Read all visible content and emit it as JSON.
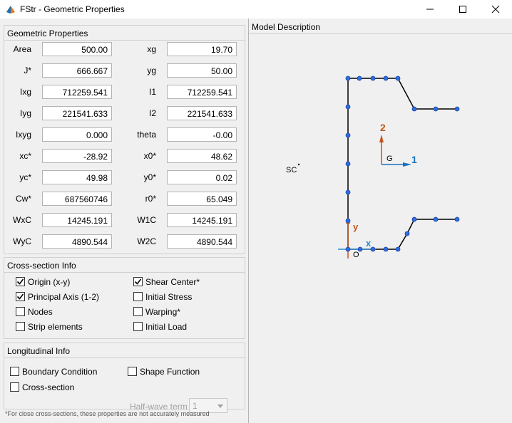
{
  "window": {
    "title": "FStr - Geometric Properties",
    "controls": [
      "minimize-icon",
      "maximize-icon",
      "close-icon"
    ]
  },
  "geometric": {
    "title": "Geometric Properties",
    "left": [
      {
        "label": "Area",
        "value": "500.00"
      },
      {
        "label": "J*",
        "value": "666.667"
      },
      {
        "label": "Ixg",
        "value": "712259.541"
      },
      {
        "label": "Iyg",
        "value": "221541.633"
      },
      {
        "label": "Ixyg",
        "value": "0.000"
      },
      {
        "label": "xc*",
        "value": "-28.92"
      },
      {
        "label": "yc*",
        "value": "49.98"
      },
      {
        "label": "Cw*",
        "value": "687560746"
      },
      {
        "label": "WxC",
        "value": "14245.191"
      },
      {
        "label": "WyC",
        "value": "4890.544"
      }
    ],
    "right": [
      {
        "label": "xg",
        "value": "19.70"
      },
      {
        "label": "yg",
        "value": "50.00"
      },
      {
        "label": "I1",
        "value": "712259.541"
      },
      {
        "label": "I2",
        "value": "221541.633"
      },
      {
        "label": "theta",
        "value": "-0.00"
      },
      {
        "label": "x0*",
        "value": "48.62"
      },
      {
        "label": "y0*",
        "value": "0.02"
      },
      {
        "label": "r0*",
        "value": "65.049"
      },
      {
        "label": "W1C",
        "value": "14245.191"
      },
      {
        "label": "W2C",
        "value": "4890.544"
      }
    ]
  },
  "cross_section": {
    "title": "Cross-section Info",
    "left": [
      {
        "label": "Origin (x-y)",
        "checked": true
      },
      {
        "label": "Principal Axis (1-2)",
        "checked": true
      },
      {
        "label": "Nodes",
        "checked": false
      },
      {
        "label": "Strip elements",
        "checked": false
      }
    ],
    "right": [
      {
        "label": "Shear Center*",
        "checked": true
      },
      {
        "label": "Initial Stress",
        "checked": false
      },
      {
        "label": "Warping*",
        "checked": false
      },
      {
        "label": "Initial Load",
        "checked": false
      }
    ]
  },
  "longitudinal": {
    "title": "Longitudinal Info",
    "boundary_condition": {
      "label": "Boundary Condition",
      "checked": false
    },
    "cross_section": {
      "label": "Cross-section",
      "checked": false
    },
    "shape_function": {
      "label": "Shape Function",
      "checked": false
    },
    "half_wave_label": "Half-wave term",
    "half_wave_value": "1"
  },
  "footnote": "*For close cross-sections, these properties are not accurately measured",
  "model": {
    "title": "Model Description",
    "labels": {
      "sc": "SC",
      "g": "G",
      "axis1": "1",
      "axis2": "2",
      "x": "x",
      "y": "y",
      "origin": "O"
    },
    "colors": {
      "line": "#000000",
      "node": "#1f5fd6",
      "principal_axis": "#1a72bb",
      "y_axis": "#c0561b",
      "x_axis": "#2a8ad0"
    }
  }
}
